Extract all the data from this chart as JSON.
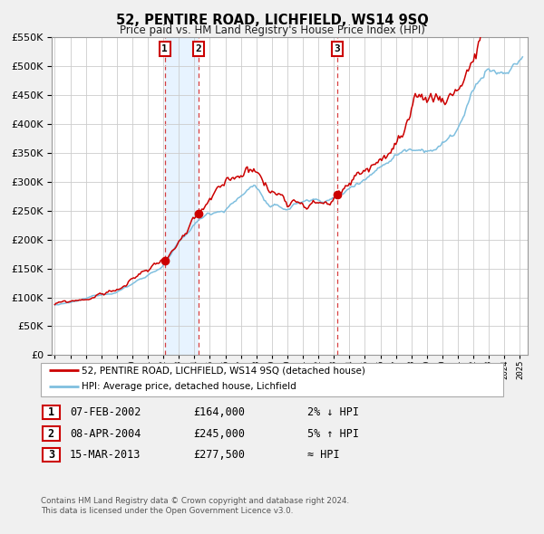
{
  "title": "52, PENTIRE ROAD, LICHFIELD, WS14 9SQ",
  "subtitle": "Price paid vs. HM Land Registry's House Price Index (HPI)",
  "legend_line1": "52, PENTIRE ROAD, LICHFIELD, WS14 9SQ (detached house)",
  "legend_line2": "HPI: Average price, detached house, Lichfield",
  "transactions": [
    {
      "num": 1,
      "date": "07-FEB-2002",
      "price": 164000,
      "rel": "2% ↓ HPI",
      "date_decimal": 2002.1
    },
    {
      "num": 2,
      "date": "08-APR-2004",
      "price": 245000,
      "rel": "5% ↑ HPI",
      "date_decimal": 2004.27
    },
    {
      "num": 3,
      "date": "15-MAR-2013",
      "price": 277500,
      "rel": "≈ HPI",
      "date_decimal": 2013.2
    }
  ],
  "footer1": "Contains HM Land Registry data © Crown copyright and database right 2024.",
  "footer2": "This data is licensed under the Open Government Licence v3.0.",
  "ylim": [
    0,
    550000
  ],
  "yticks": [
    0,
    50000,
    100000,
    150000,
    200000,
    250000,
    300000,
    350000,
    400000,
    450000,
    500000,
    550000
  ],
  "xlim_start": 1994.8,
  "xlim_end": 2025.5,
  "hpi_color": "#7fbfdf",
  "price_color": "#cc0000",
  "marker_color": "#cc0000",
  "shade_color": "#ddeeff",
  "bg_color": "#f0f0f0",
  "plot_bg_color": "#ffffff",
  "grid_color": "#cccccc",
  "vline_color": "#cc0000",
  "table_rows": [
    [
      "1",
      "07-FEB-2002",
      "£164,000",
      "2% ↓ HPI"
    ],
    [
      "2",
      "08-APR-2004",
      "£245,000",
      "5% ↑ HPI"
    ],
    [
      "3",
      "15-MAR-2013",
      "£277,500",
      "≈ HPI"
    ]
  ]
}
